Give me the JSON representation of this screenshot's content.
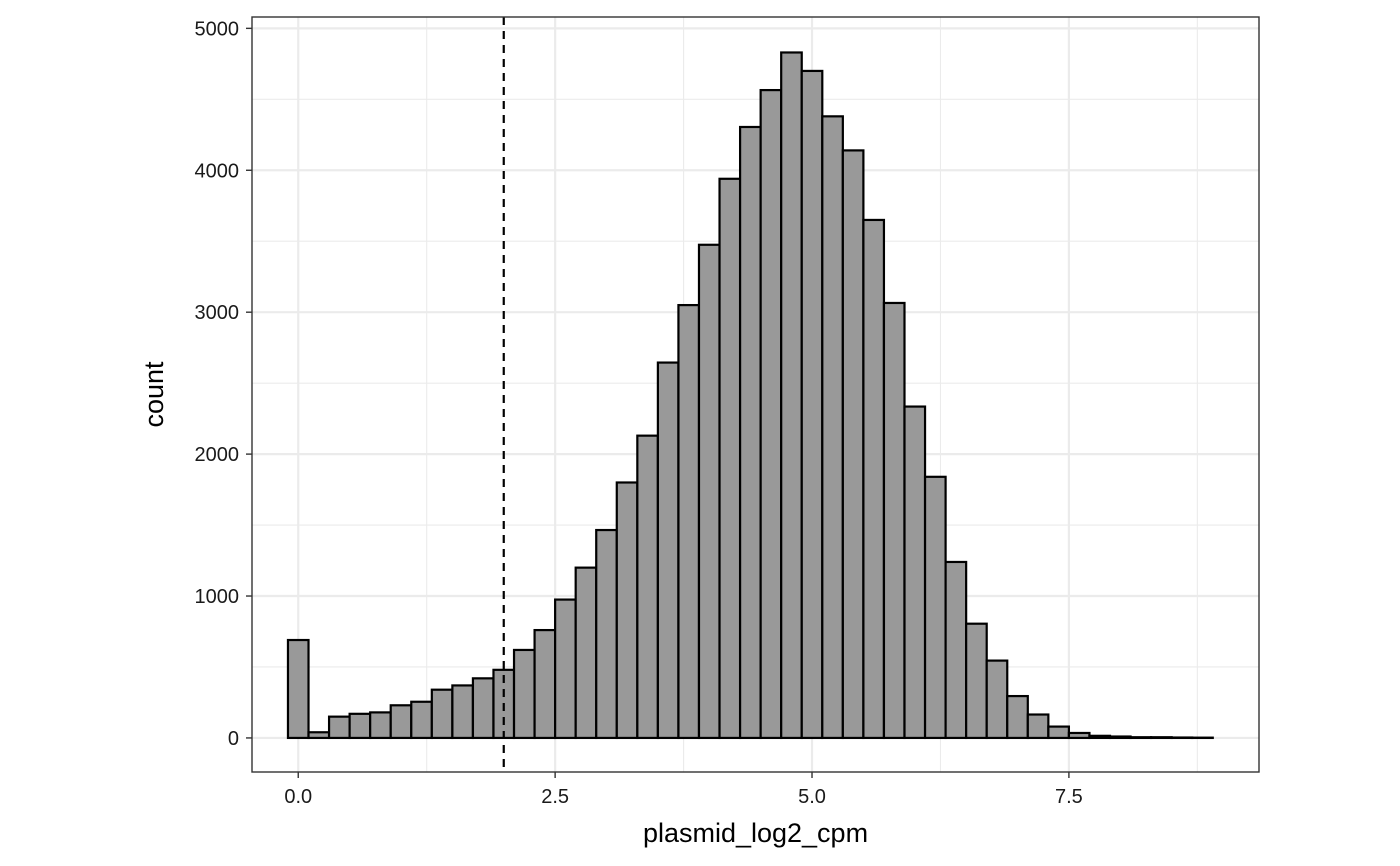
{
  "chart_data": {
    "type": "bar",
    "subtype": "histogram",
    "xlabel": "plasmid_log2_cpm",
    "ylabel": "count",
    "xlim": [
      -0.45,
      9.35
    ],
    "ylim": [
      -240,
      5080
    ],
    "x_ticks": [
      0.0,
      2.5,
      5.0,
      7.5
    ],
    "x_tick_labels": [
      "0.0",
      "2.5",
      "5.0",
      "7.5"
    ],
    "y_ticks": [
      0,
      1000,
      2000,
      3000,
      4000,
      5000
    ],
    "y_tick_labels": [
      "0",
      "1000",
      "2000",
      "3000",
      "4000",
      "5000"
    ],
    "bin_width": 0.2,
    "bin_centers": [
      0.0,
      0.2,
      0.4,
      0.6,
      0.8,
      1.0,
      1.2,
      1.4,
      1.6,
      1.8,
      2.0,
      2.2,
      2.4,
      2.6,
      2.8,
      3.0,
      3.2,
      3.4,
      3.6,
      3.8,
      4.0,
      4.2,
      4.4,
      4.6,
      4.8,
      5.0,
      5.2,
      5.4,
      5.6,
      5.8,
      6.0,
      6.2,
      6.4,
      6.6,
      6.8,
      7.0,
      7.2,
      7.4,
      7.6,
      7.8,
      8.0,
      8.2,
      8.4,
      8.6,
      8.8
    ],
    "values": [
      690,
      40,
      150,
      170,
      180,
      230,
      255,
      340,
      370,
      420,
      480,
      620,
      760,
      975,
      1200,
      1465,
      1800,
      2130,
      2645,
      3050,
      3475,
      3940,
      4305,
      4565,
      4830,
      4700,
      4380,
      4140,
      3650,
      3065,
      2335,
      1840,
      1240,
      805,
      545,
      295,
      165,
      80,
      35,
      15,
      10,
      5,
      5,
      3,
      2
    ],
    "vline_x": 2.0,
    "vline_style": "dashed",
    "bar_fill": "#999999",
    "bar_stroke": "#000000",
    "grid": true,
    "grid_color": "#ebebeb",
    "panel_border": "#333333",
    "background": "#ffffff"
  }
}
